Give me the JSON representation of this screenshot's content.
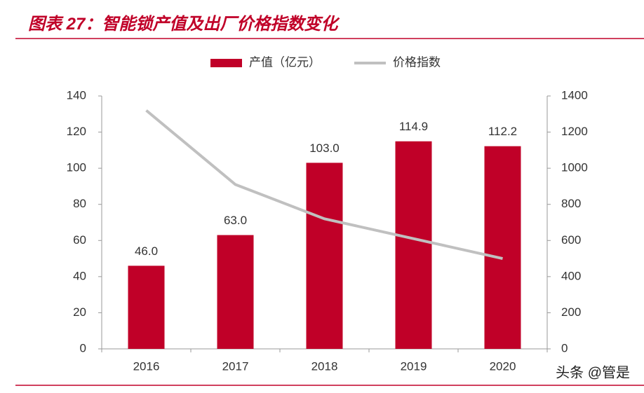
{
  "chart_data": {
    "type": "bar",
    "title": "图表 27：智能锁产值及出厂价格指数变化",
    "categories": [
      "2016",
      "2017",
      "2018",
      "2019",
      "2020"
    ],
    "series": [
      {
        "name": "产值（亿元）",
        "type": "bar",
        "color": "#c00028",
        "values": [
          46.0,
          63.0,
          103.0,
          114.9,
          112.2
        ],
        "value_labels": [
          "46.0",
          "63.0",
          "103.0",
          "114.9",
          "112.2"
        ]
      },
      {
        "name": "价格指数",
        "type": "line",
        "axis": "y2",
        "color": "#c0c0c0",
        "values": [
          1320,
          910,
          720,
          610,
          500
        ]
      }
    ],
    "ylim": [
      0,
      140
    ],
    "yticks": [
      0,
      20,
      40,
      60,
      80,
      100,
      120,
      140
    ],
    "y2lim": [
      0,
      1400
    ],
    "y2ticks": [
      0,
      200,
      400,
      600,
      800,
      1000,
      1200,
      1400
    ],
    "legend": "top",
    "watermark": "头条 @管是"
  }
}
